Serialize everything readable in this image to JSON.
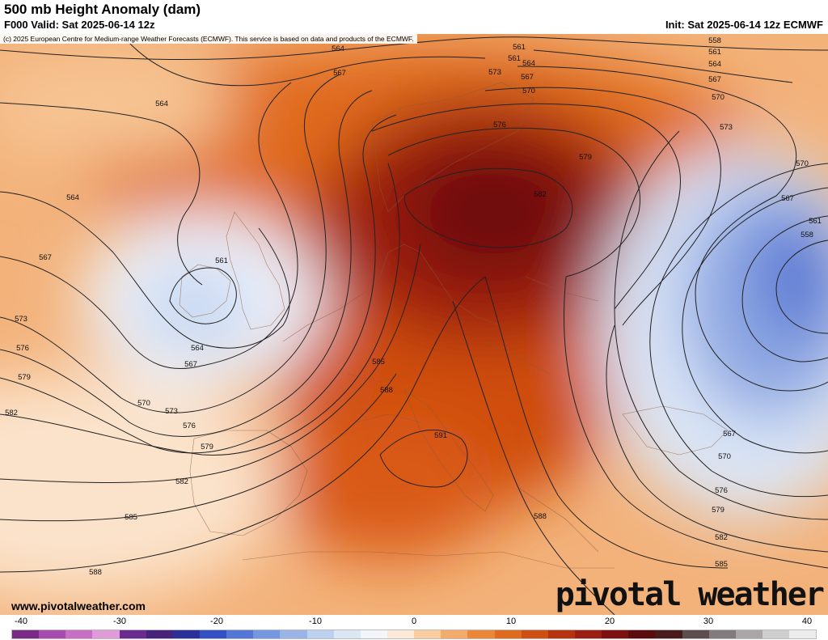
{
  "header": {
    "title": "500 mb Height Anomaly (dam)",
    "valid": "F000 Valid: Sat 2025-06-14 12z",
    "init": "Init: Sat 2025-06-14 12z ECMWF"
  },
  "copyright": "(c) 2025 European Centre for Medium-range Weather Forecasts (ECMWF). This service is based on data and products of the ECMWF.",
  "website": "www.pivotalweather.com",
  "logo": "pivotal weather",
  "colorbar": {
    "ticks": [
      "-40",
      "-30",
      "-20",
      "-10",
      "0",
      "10",
      "20",
      "30",
      "40"
    ],
    "colors": [
      "#7a2a86",
      "#a94ab0",
      "#c86ec4",
      "#e19ad9",
      "#6b2a8f",
      "#47237e",
      "#2b2f9a",
      "#3350c4",
      "#5176d6",
      "#7596e0",
      "#9ab4e8",
      "#bcd0f0",
      "#dce7f6",
      "#f2f6fb",
      "#fde9d6",
      "#f9cd9d",
      "#f4ab69",
      "#ec8737",
      "#e06a1e",
      "#cf4e11",
      "#b8330d",
      "#9c1e10",
      "#7f1010",
      "#5c0c0c",
      "#4a1a1a",
      "#5e4d4d",
      "#827b7b",
      "#aaa6a6",
      "#cfcdcd",
      "#ececec"
    ]
  },
  "contour_labels": [
    {
      "text": "564"
    },
    {
      "text": "567"
    },
    {
      "text": "564"
    },
    {
      "text": "564"
    },
    {
      "text": "567"
    },
    {
      "text": "561"
    },
    {
      "text": "573"
    },
    {
      "text": "576"
    },
    {
      "text": "579"
    },
    {
      "text": "582"
    },
    {
      "text": "564"
    },
    {
      "text": "567"
    },
    {
      "text": "570"
    },
    {
      "text": "573"
    },
    {
      "text": "576"
    },
    {
      "text": "579"
    },
    {
      "text": "582"
    },
    {
      "text": "585"
    },
    {
      "text": "588"
    },
    {
      "text": "573"
    },
    {
      "text": "576"
    },
    {
      "text": "579"
    },
    {
      "text": "582"
    },
    {
      "text": "585"
    },
    {
      "text": "588"
    },
    {
      "text": "591"
    },
    {
      "text": "588"
    },
    {
      "text": "561"
    },
    {
      "text": "561"
    },
    {
      "text": "564"
    },
    {
      "text": "567"
    },
    {
      "text": "570"
    },
    {
      "text": "558"
    },
    {
      "text": "561"
    },
    {
      "text": "564"
    },
    {
      "text": "567"
    },
    {
      "text": "570"
    },
    {
      "text": "573"
    },
    {
      "text": "570"
    },
    {
      "text": "567"
    },
    {
      "text": "561"
    },
    {
      "text": "558"
    },
    {
      "text": "567"
    },
    {
      "text": "570"
    },
    {
      "text": "576"
    },
    {
      "text": "579"
    },
    {
      "text": "582"
    },
    {
      "text": "585"
    }
  ]
}
